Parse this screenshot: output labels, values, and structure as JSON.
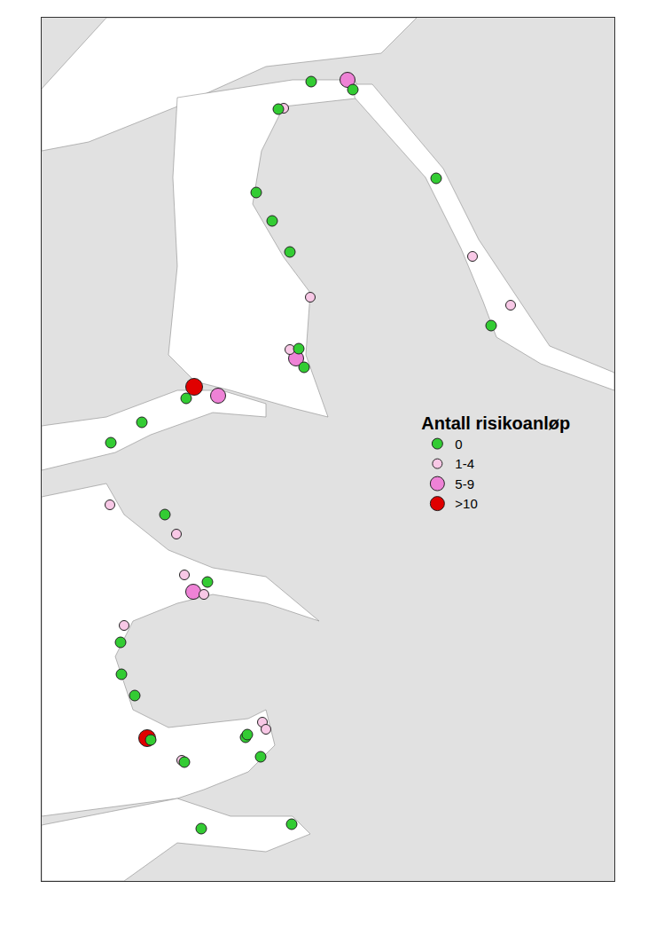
{
  "chart_data": {
    "type": "scatter",
    "legend_title": "Antall risikoanløp",
    "legend": "right",
    "tick_labels": false,
    "grid": false,
    "xlim": [
      47,
      693
    ],
    "ylim": [
      993,
      20
    ],
    "series": [
      {
        "name": "0",
        "color": "#33cc33",
        "marker": "circle",
        "x": [
          351,
          398,
          314,
          289,
          307,
          327,
          492,
          554,
          337,
          343,
          210,
          160,
          125,
          186,
          234,
          136,
          137,
          152,
          170,
          208,
          277,
          279,
          294,
          227,
          329
        ],
        "y": [
          92,
          101,
          123,
          217,
          249,
          284,
          201,
          367,
          393,
          414,
          449,
          476,
          499,
          580,
          656,
          724,
          760,
          784,
          834,
          859,
          831,
          828,
          853,
          934,
          929
        ]
      },
      {
        "name": "1-4",
        "color": "#f8c8e6",
        "marker": "circle",
        "x": [
          320,
          533,
          576,
          350,
          327,
          124,
          199,
          208,
          230,
          140,
          296,
          300,
          205
        ],
        "y": [
          122,
          289,
          344,
          335,
          394,
          569,
          602,
          648,
          670,
          705,
          814,
          822,
          857
        ]
      },
      {
        "name": "5-9",
        "color": "#ee82d6",
        "marker": "circle",
        "x": [
          392,
          334,
          246,
          218
        ],
        "y": [
          90,
          404,
          446,
          667
        ]
      },
      {
        "name": ">10",
        "color": "#e00000",
        "marker": "circle",
        "x": [
          219,
          166
        ],
        "y": [
          436,
          832
        ]
      }
    ]
  }
}
